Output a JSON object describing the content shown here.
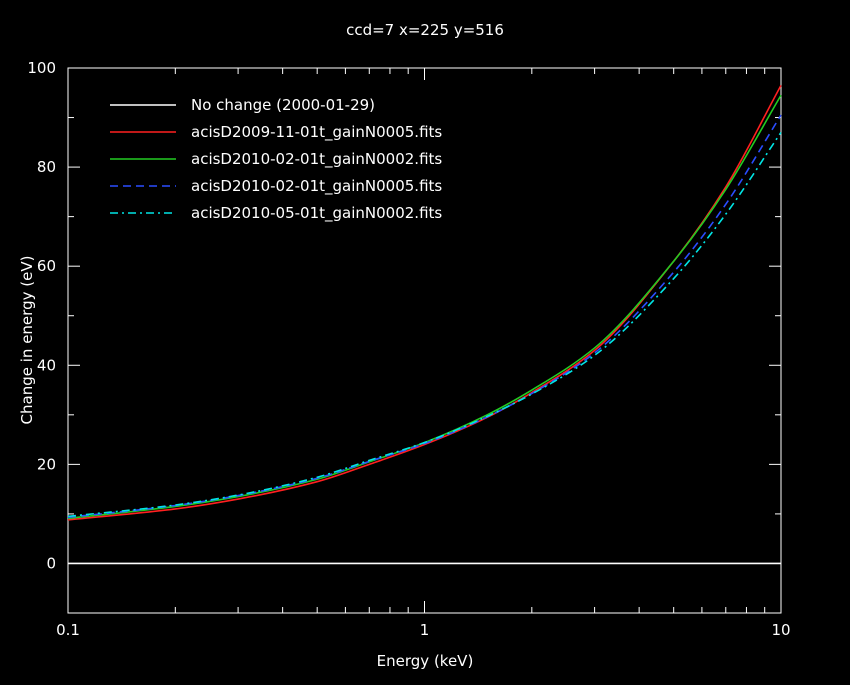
{
  "chart_data": {
    "type": "line",
    "title": "ccd=7 x=225 y=516",
    "xlabel": "Energy (keV)",
    "ylabel": "Change in energy (eV)",
    "xscale": "log",
    "xlim": [
      0.1,
      10
    ],
    "ylim": [
      -10,
      100
    ],
    "xticks": [
      {
        "value": 0.1,
        "label": "0.1"
      },
      {
        "value": 1,
        "label": "1"
      },
      {
        "value": 10,
        "label": "10"
      }
    ],
    "yticks": [
      {
        "value": 0,
        "label": "0"
      },
      {
        "value": 20,
        "label": "20"
      },
      {
        "value": 40,
        "label": "40"
      },
      {
        "value": 60,
        "label": "60"
      },
      {
        "value": 80,
        "label": "80"
      },
      {
        "value": 100,
        "label": "100"
      }
    ],
    "legend_position": "top-left",
    "x": [
      0.1,
      0.2,
      0.3,
      0.5,
      0.7,
      1,
      1.5,
      2,
      3,
      5,
      7,
      10
    ],
    "series": [
      {
        "name": "No change (2000-01-29)",
        "color": "#ffffff",
        "dash": "solid",
        "values": [
          0,
          0,
          0,
          0,
          0,
          0,
          0,
          0,
          0,
          0,
          0,
          0
        ]
      },
      {
        "name": "acisD2009-11-01t_gainN0005.fits",
        "color": "#ff2020",
        "dash": "solid",
        "values": [
          8.8,
          11,
          13,
          16.5,
          20,
          24,
          29.5,
          34.5,
          43,
          61,
          76,
          96.5
        ]
      },
      {
        "name": "acisD2010-02-01t_gainN0002.fits",
        "color": "#22cc22",
        "dash": "solid",
        "values": [
          9.1,
          11.5,
          13.5,
          17,
          20.5,
          24.4,
          30,
          35,
          43.5,
          61,
          75.5,
          94.5
        ]
      },
      {
        "name": "acisD2010-02-01t_gainN0005.fits",
        "color": "#2a4dff",
        "dash": "dashed",
        "values": [
          9.3,
          11.7,
          13.7,
          17.2,
          20.6,
          24.2,
          29.6,
          34.3,
          42.5,
          58.8,
          72.5,
          90.5
        ]
      },
      {
        "name": "acisD2010-05-01t_gainN0002.fits",
        "color": "#00e5e5",
        "dash": "dashdot",
        "values": [
          9.5,
          11.8,
          13.8,
          17.4,
          20.8,
          24.4,
          29.7,
          34.2,
          42,
          57.5,
          70.5,
          87
        ]
      }
    ]
  }
}
